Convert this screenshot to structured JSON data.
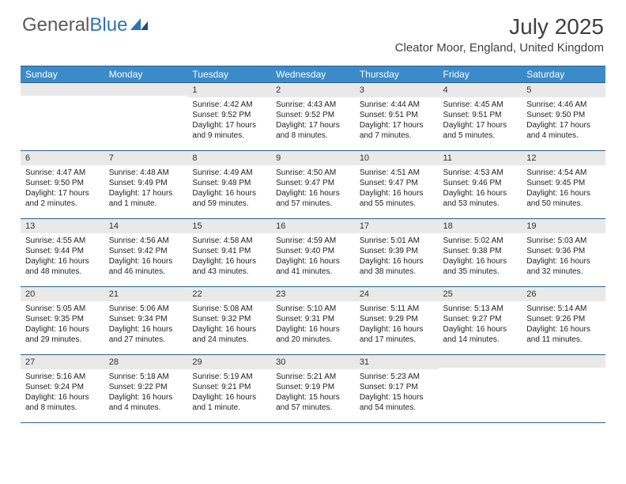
{
  "logo": {
    "part1": "General",
    "part2": "Blue"
  },
  "title": "July 2025",
  "location": "Cleator Moor, England, United Kingdom",
  "colors": {
    "header_bg": "#3b8bc9",
    "header_border": "#2e5e88",
    "daynum_bg": "#e9e9e9",
    "text": "#222222",
    "logo_gray": "#5a5a5a",
    "logo_blue": "#2e75b6"
  },
  "day_headers": [
    "Sunday",
    "Monday",
    "Tuesday",
    "Wednesday",
    "Thursday",
    "Friday",
    "Saturday"
  ],
  "weeks": [
    [
      null,
      null,
      {
        "n": "1",
        "sr": "4:42 AM",
        "ss": "9:52 PM",
        "dl": "17 hours and 9 minutes."
      },
      {
        "n": "2",
        "sr": "4:43 AM",
        "ss": "9:52 PM",
        "dl": "17 hours and 8 minutes."
      },
      {
        "n": "3",
        "sr": "4:44 AM",
        "ss": "9:51 PM",
        "dl": "17 hours and 7 minutes."
      },
      {
        "n": "4",
        "sr": "4:45 AM",
        "ss": "9:51 PM",
        "dl": "17 hours and 5 minutes."
      },
      {
        "n": "5",
        "sr": "4:46 AM",
        "ss": "9:50 PM",
        "dl": "17 hours and 4 minutes."
      }
    ],
    [
      {
        "n": "6",
        "sr": "4:47 AM",
        "ss": "9:50 PM",
        "dl": "17 hours and 2 minutes."
      },
      {
        "n": "7",
        "sr": "4:48 AM",
        "ss": "9:49 PM",
        "dl": "17 hours and 1 minute."
      },
      {
        "n": "8",
        "sr": "4:49 AM",
        "ss": "9:48 PM",
        "dl": "16 hours and 59 minutes."
      },
      {
        "n": "9",
        "sr": "4:50 AM",
        "ss": "9:47 PM",
        "dl": "16 hours and 57 minutes."
      },
      {
        "n": "10",
        "sr": "4:51 AM",
        "ss": "9:47 PM",
        "dl": "16 hours and 55 minutes."
      },
      {
        "n": "11",
        "sr": "4:53 AM",
        "ss": "9:46 PM",
        "dl": "16 hours and 53 minutes."
      },
      {
        "n": "12",
        "sr": "4:54 AM",
        "ss": "9:45 PM",
        "dl": "16 hours and 50 minutes."
      }
    ],
    [
      {
        "n": "13",
        "sr": "4:55 AM",
        "ss": "9:44 PM",
        "dl": "16 hours and 48 minutes."
      },
      {
        "n": "14",
        "sr": "4:56 AM",
        "ss": "9:42 PM",
        "dl": "16 hours and 46 minutes."
      },
      {
        "n": "15",
        "sr": "4:58 AM",
        "ss": "9:41 PM",
        "dl": "16 hours and 43 minutes."
      },
      {
        "n": "16",
        "sr": "4:59 AM",
        "ss": "9:40 PM",
        "dl": "16 hours and 41 minutes."
      },
      {
        "n": "17",
        "sr": "5:01 AM",
        "ss": "9:39 PM",
        "dl": "16 hours and 38 minutes."
      },
      {
        "n": "18",
        "sr": "5:02 AM",
        "ss": "9:38 PM",
        "dl": "16 hours and 35 minutes."
      },
      {
        "n": "19",
        "sr": "5:03 AM",
        "ss": "9:36 PM",
        "dl": "16 hours and 32 minutes."
      }
    ],
    [
      {
        "n": "20",
        "sr": "5:05 AM",
        "ss": "9:35 PM",
        "dl": "16 hours and 29 minutes."
      },
      {
        "n": "21",
        "sr": "5:06 AM",
        "ss": "9:34 PM",
        "dl": "16 hours and 27 minutes."
      },
      {
        "n": "22",
        "sr": "5:08 AM",
        "ss": "9:32 PM",
        "dl": "16 hours and 24 minutes."
      },
      {
        "n": "23",
        "sr": "5:10 AM",
        "ss": "9:31 PM",
        "dl": "16 hours and 20 minutes."
      },
      {
        "n": "24",
        "sr": "5:11 AM",
        "ss": "9:29 PM",
        "dl": "16 hours and 17 minutes."
      },
      {
        "n": "25",
        "sr": "5:13 AM",
        "ss": "9:27 PM",
        "dl": "16 hours and 14 minutes."
      },
      {
        "n": "26",
        "sr": "5:14 AM",
        "ss": "9:26 PM",
        "dl": "16 hours and 11 minutes."
      }
    ],
    [
      {
        "n": "27",
        "sr": "5:16 AM",
        "ss": "9:24 PM",
        "dl": "16 hours and 8 minutes."
      },
      {
        "n": "28",
        "sr": "5:18 AM",
        "ss": "9:22 PM",
        "dl": "16 hours and 4 minutes."
      },
      {
        "n": "29",
        "sr": "5:19 AM",
        "ss": "9:21 PM",
        "dl": "16 hours and 1 minute."
      },
      {
        "n": "30",
        "sr": "5:21 AM",
        "ss": "9:19 PM",
        "dl": "15 hours and 57 minutes."
      },
      {
        "n": "31",
        "sr": "5:23 AM",
        "ss": "9:17 PM",
        "dl": "15 hours and 54 minutes."
      },
      null,
      null
    ]
  ],
  "labels": {
    "sunrise": "Sunrise:",
    "sunset": "Sunset:",
    "daylight": "Daylight:"
  }
}
